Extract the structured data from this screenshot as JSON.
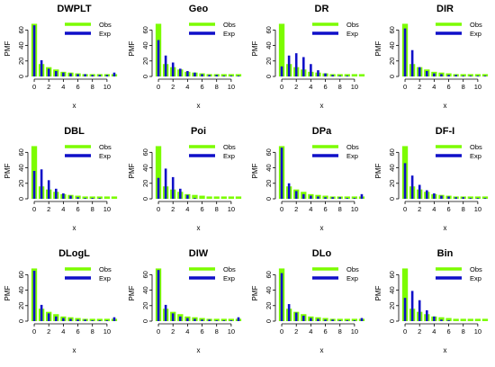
{
  "colors": {
    "observed": "#7CFC00",
    "expected": "#1010C8",
    "axis": "#000000",
    "background": "#ffffff"
  },
  "chart_data": [
    {
      "type": "bar",
      "title": "DWPLT",
      "xlabel": "x",
      "ylabel": "PMF",
      "x": [
        0,
        1,
        2,
        3,
        4,
        5,
        6,
        7,
        8,
        9,
        10,
        11
      ],
      "xticks": [
        "0",
        "2",
        "4",
        "6",
        "8",
        "10"
      ],
      "yticks": [
        "0",
        "20",
        "40",
        "60"
      ],
      "ylim": [
        0,
        72
      ],
      "legend": [
        "Obs",
        "Exp"
      ],
      "legend_position": "top-right",
      "grid": false,
      "series": [
        {
          "name": "Obs",
          "values": [
            68,
            16,
            12,
            9,
            6,
            5,
            4,
            3,
            3,
            3,
            3,
            3
          ]
        },
        {
          "name": "Exp",
          "values": [
            66,
            21,
            10,
            7,
            5,
            4,
            3,
            3,
            2,
            2,
            2,
            5
          ]
        }
      ]
    },
    {
      "type": "bar",
      "title": "Geo",
      "xlabel": "x",
      "ylabel": "PMF",
      "x": [
        0,
        1,
        2,
        3,
        4,
        5,
        6,
        7,
        8,
        9,
        10,
        11
      ],
      "xticks": [
        "0",
        "2",
        "4",
        "6",
        "8",
        "10"
      ],
      "yticks": [
        "0",
        "20",
        "40",
        "60"
      ],
      "ylim": [
        0,
        72
      ],
      "legend": [
        "Obs",
        "Exp"
      ],
      "legend_position": "top-right",
      "grid": false,
      "series": [
        {
          "name": "Obs",
          "values": [
            68,
            16,
            12,
            9,
            6,
            5,
            4,
            3,
            3,
            3,
            3,
            3
          ]
        },
        {
          "name": "Exp",
          "values": [
            47,
            27,
            18,
            10,
            7,
            5,
            3,
            2,
            2,
            1,
            1,
            1
          ]
        }
      ]
    },
    {
      "type": "bar",
      "title": "DR",
      "xlabel": "x",
      "ylabel": "PMF",
      "x": [
        0,
        1,
        2,
        3,
        4,
        5,
        6,
        7,
        8,
        9,
        10,
        11
      ],
      "xticks": [
        "0",
        "2",
        "4",
        "6",
        "8",
        "10"
      ],
      "yticks": [
        "0",
        "20",
        "40",
        "60"
      ],
      "ylim": [
        0,
        72
      ],
      "legend": [
        "Obs",
        "Exp"
      ],
      "legend_position": "top-right",
      "grid": false,
      "series": [
        {
          "name": "Obs",
          "values": [
            68,
            16,
            12,
            9,
            6,
            5,
            4,
            3,
            3,
            3,
            3,
            3
          ]
        },
        {
          "name": "Exp",
          "values": [
            13,
            27,
            30,
            25,
            16,
            8,
            4,
            2,
            1,
            1,
            0,
            0
          ]
        }
      ]
    },
    {
      "type": "bar",
      "title": "DIR",
      "xlabel": "x",
      "ylabel": "PMF",
      "x": [
        0,
        1,
        2,
        3,
        4,
        5,
        6,
        7,
        8,
        9,
        10,
        11
      ],
      "xticks": [
        "0",
        "2",
        "4",
        "6",
        "8",
        "10"
      ],
      "yticks": [
        "0",
        "20",
        "40",
        "60"
      ],
      "ylim": [
        0,
        72
      ],
      "legend": [
        "Obs",
        "Exp"
      ],
      "legend_position": "top-right",
      "grid": false,
      "series": [
        {
          "name": "Obs",
          "values": [
            68,
            16,
            12,
            9,
            6,
            5,
            4,
            3,
            3,
            3,
            3,
            3
          ]
        },
        {
          "name": "Exp",
          "values": [
            62,
            34,
            12,
            7,
            4,
            3,
            2,
            2,
            1,
            1,
            1,
            1
          ]
        }
      ]
    },
    {
      "type": "bar",
      "title": "DBL",
      "xlabel": "x",
      "ylabel": "PMF",
      "x": [
        0,
        1,
        2,
        3,
        4,
        5,
        6,
        7,
        8,
        9,
        10,
        11
      ],
      "xticks": [
        "0",
        "2",
        "4",
        "6",
        "8",
        "10"
      ],
      "yticks": [
        "0",
        "20",
        "40",
        "60"
      ],
      "ylim": [
        0,
        72
      ],
      "legend": [
        "Obs",
        "Exp"
      ],
      "legend_position": "top-right",
      "grid": false,
      "series": [
        {
          "name": "Obs",
          "values": [
            68,
            16,
            12,
            9,
            6,
            5,
            4,
            3,
            3,
            3,
            3,
            3
          ]
        },
        {
          "name": "Exp",
          "values": [
            36,
            38,
            24,
            13,
            7,
            4,
            2,
            1,
            1,
            1,
            0,
            0
          ]
        }
      ]
    },
    {
      "type": "bar",
      "title": "Poi",
      "xlabel": "x",
      "ylabel": "PMF",
      "x": [
        0,
        1,
        2,
        3,
        4,
        5,
        6,
        7,
        8,
        9,
        10,
        11
      ],
      "xticks": [
        "0",
        "2",
        "4",
        "6",
        "8",
        "10"
      ],
      "yticks": [
        "0",
        "20",
        "40",
        "60"
      ],
      "ylim": [
        0,
        72
      ],
      "legend": [
        "Obs",
        "Exp"
      ],
      "legend_position": "top-right",
      "grid": false,
      "series": [
        {
          "name": "Obs",
          "values": [
            68,
            16,
            12,
            9,
            6,
            5,
            4,
            3,
            3,
            3,
            3,
            3
          ]
        },
        {
          "name": "Exp",
          "values": [
            27,
            39,
            28,
            13,
            5,
            1,
            0,
            0,
            0,
            0,
            0,
            0
          ]
        }
      ]
    },
    {
      "type": "bar",
      "title": "DPa",
      "xlabel": "x",
      "ylabel": "PMF",
      "x": [
        0,
        1,
        2,
        3,
        4,
        5,
        6,
        7,
        8,
        9,
        10,
        11
      ],
      "xticks": [
        "0",
        "2",
        "4",
        "6",
        "8",
        "10"
      ],
      "yticks": [
        "0",
        "20",
        "40",
        "60"
      ],
      "ylim": [
        0,
        72
      ],
      "legend": [
        "Obs",
        "Exp"
      ],
      "legend_position": "top-right",
      "grid": false,
      "series": [
        {
          "name": "Obs",
          "values": [
            68,
            16,
            12,
            9,
            6,
            5,
            4,
            3,
            3,
            3,
            3,
            3
          ]
        },
        {
          "name": "Exp",
          "values": [
            66,
            20,
            10,
            6,
            4,
            3,
            2,
            2,
            2,
            1,
            1,
            6
          ]
        }
      ]
    },
    {
      "type": "bar",
      "title": "DF-I",
      "xlabel": "x",
      "ylabel": "PMF",
      "x": [
        0,
        1,
        2,
        3,
        4,
        5,
        6,
        7,
        8,
        9,
        10,
        11
      ],
      "xticks": [
        "0",
        "2",
        "4",
        "6",
        "8",
        "10"
      ],
      "yticks": [
        "0",
        "20",
        "40",
        "60"
      ],
      "ylim": [
        0,
        72
      ],
      "legend": [
        "Obs",
        "Exp"
      ],
      "legend_position": "top-right",
      "grid": false,
      "series": [
        {
          "name": "Obs",
          "values": [
            68,
            16,
            12,
            9,
            6,
            5,
            4,
            3,
            3,
            3,
            3,
            3
          ]
        },
        {
          "name": "Exp",
          "values": [
            46,
            30,
            18,
            11,
            7,
            4,
            3,
            2,
            2,
            1,
            1,
            1
          ]
        }
      ]
    },
    {
      "type": "bar",
      "title": "DLogL",
      "xlabel": "x",
      "ylabel": "PMF",
      "x": [
        0,
        1,
        2,
        3,
        4,
        5,
        6,
        7,
        8,
        9,
        10,
        11
      ],
      "xticks": [
        "0",
        "2",
        "4",
        "6",
        "8",
        "10"
      ],
      "yticks": [
        "0",
        "20",
        "40",
        "60"
      ],
      "ylim": [
        0,
        72
      ],
      "legend": [
        "Obs",
        "Exp"
      ],
      "legend_position": "top-right",
      "grid": false,
      "series": [
        {
          "name": "Obs",
          "values": [
            68,
            16,
            12,
            9,
            6,
            5,
            4,
            3,
            3,
            3,
            3,
            3
          ]
        },
        {
          "name": "Exp",
          "values": [
            65,
            21,
            10,
            6,
            4,
            3,
            2,
            2,
            1,
            1,
            1,
            5
          ]
        }
      ]
    },
    {
      "type": "bar",
      "title": "DIW",
      "xlabel": "x",
      "ylabel": "PMF",
      "x": [
        0,
        1,
        2,
        3,
        4,
        5,
        6,
        7,
        8,
        9,
        10,
        11
      ],
      "xticks": [
        "0",
        "2",
        "4",
        "6",
        "8",
        "10"
      ],
      "yticks": [
        "0",
        "20",
        "40",
        "60"
      ],
      "ylim": [
        0,
        72
      ],
      "legend": [
        "Obs",
        "Exp"
      ],
      "legend_position": "top-right",
      "grid": false,
      "series": [
        {
          "name": "Obs",
          "values": [
            68,
            16,
            12,
            9,
            6,
            5,
            4,
            3,
            3,
            3,
            3,
            3
          ]
        },
        {
          "name": "Exp",
          "values": [
            66,
            21,
            10,
            6,
            4,
            3,
            2,
            2,
            1,
            1,
            1,
            5
          ]
        }
      ]
    },
    {
      "type": "bar",
      "title": "DLo",
      "xlabel": "x",
      "ylabel": "PMF",
      "x": [
        0,
        1,
        2,
        3,
        4,
        5,
        6,
        7,
        8,
        9,
        10,
        11
      ],
      "xticks": [
        "0",
        "2",
        "4",
        "6",
        "8",
        "10"
      ],
      "yticks": [
        "0",
        "20",
        "40",
        "60"
      ],
      "ylim": [
        0,
        72
      ],
      "legend": [
        "Obs",
        "Exp"
      ],
      "legend_position": "top-right",
      "grid": false,
      "series": [
        {
          "name": "Obs",
          "values": [
            68,
            16,
            12,
            9,
            6,
            5,
            4,
            3,
            3,
            3,
            3,
            3
          ]
        },
        {
          "name": "Exp",
          "values": [
            62,
            22,
            11,
            7,
            4,
            3,
            2,
            2,
            1,
            1,
            1,
            4
          ]
        }
      ]
    },
    {
      "type": "bar",
      "title": "Bin",
      "xlabel": "x",
      "ylabel": "PMF",
      "x": [
        0,
        1,
        2,
        3,
        4,
        5,
        6,
        7,
        8,
        9,
        10,
        11
      ],
      "xticks": [
        "0",
        "2",
        "4",
        "6",
        "8",
        "10"
      ],
      "yticks": [
        "0",
        "20",
        "40",
        "60"
      ],
      "ylim": [
        0,
        72
      ],
      "legend": [
        "Obs",
        "Exp"
      ],
      "legend_position": "top-right",
      "grid": false,
      "series": [
        {
          "name": "Obs",
          "values": [
            68,
            16,
            12,
            9,
            6,
            5,
            4,
            3,
            3,
            3,
            3,
            3
          ]
        },
        {
          "name": "Exp",
          "values": [
            30,
            39,
            27,
            14,
            6,
            2,
            1,
            0,
            0,
            0,
            0,
            0
          ]
        }
      ]
    }
  ]
}
